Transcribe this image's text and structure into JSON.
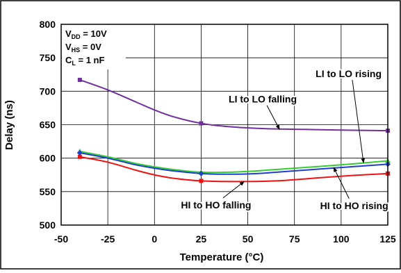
{
  "chart_data": {
    "type": "line",
    "xlabel": "Temperature (°C)",
    "ylabel": "Delay (ns)",
    "xlim": [
      -50,
      125
    ],
    "ylim": [
      500,
      800
    ],
    "xticks": [
      -50,
      -25,
      0,
      25,
      50,
      75,
      100,
      125
    ],
    "yticks": [
      500,
      550,
      600,
      650,
      700,
      750,
      800
    ],
    "grid": true,
    "conditions": {
      "vdd": {
        "main": "V",
        "sub": "DD",
        "rest": " = 10V"
      },
      "vhs": {
        "main": "V",
        "sub": "HS",
        "rest": " = 0V"
      },
      "cl": {
        "main": "C",
        "sub": "L",
        "rest": " = 1 nF"
      }
    },
    "series": [
      {
        "name": "LI to LO falling",
        "color": "#7030A0",
        "marker": "square",
        "points": [
          [
            -40,
            717
          ],
          [
            25,
            652
          ],
          [
            125,
            641
          ]
        ],
        "curve": [
          [
            -40,
            717
          ],
          [
            -25,
            702
          ],
          [
            -10,
            684
          ],
          [
            0,
            672
          ],
          [
            10,
            662
          ],
          [
            25,
            652
          ],
          [
            40,
            647
          ],
          [
            60,
            644
          ],
          [
            80,
            643
          ],
          [
            100,
            642
          ],
          [
            125,
            641
          ]
        ]
      },
      {
        "name": "LI to LO rising",
        "color": "#33CC33",
        "marker": "triangle",
        "points": [
          [
            -40,
            610
          ],
          [
            25,
            579
          ],
          [
            125,
            596
          ]
        ],
        "curve": [
          [
            -40,
            610
          ],
          [
            -25,
            602
          ],
          [
            -10,
            592
          ],
          [
            0,
            587
          ],
          [
            10,
            583
          ],
          [
            25,
            579
          ],
          [
            40,
            579
          ],
          [
            55,
            581
          ],
          [
            75,
            585
          ],
          [
            100,
            590
          ],
          [
            125,
            596
          ]
        ]
      },
      {
        "name": "HI to HO rising",
        "color": "#1F3FD0",
        "marker": "diamond",
        "points": [
          [
            -40,
            608
          ],
          [
            25,
            577
          ],
          [
            125,
            591
          ]
        ],
        "curve": [
          [
            -40,
            608
          ],
          [
            -25,
            600
          ],
          [
            -10,
            590
          ],
          [
            0,
            585
          ],
          [
            10,
            581
          ],
          [
            25,
            577
          ],
          [
            40,
            576
          ],
          [
            55,
            577
          ],
          [
            75,
            581
          ],
          [
            100,
            586
          ],
          [
            125,
            591
          ]
        ]
      },
      {
        "name": "HI to HO falling",
        "color": "#EE1111",
        "marker": "square",
        "points": [
          [
            -40,
            602
          ],
          [
            25,
            566
          ],
          [
            125,
            577
          ]
        ],
        "curve": [
          [
            -40,
            602
          ],
          [
            -25,
            594
          ],
          [
            -10,
            582
          ],
          [
            0,
            575
          ],
          [
            10,
            570
          ],
          [
            25,
            566
          ],
          [
            45,
            565
          ],
          [
            65,
            566
          ],
          [
            85,
            570
          ],
          [
            105,
            574
          ],
          [
            125,
            577
          ]
        ]
      }
    ],
    "annotations": [
      {
        "text": "LI to LO falling",
        "series": 0,
        "label_at": [
          58,
          683
        ],
        "arrow_to": [
          67,
          643
        ]
      },
      {
        "text": "LI to LO rising",
        "series": 1,
        "label_at": [
          104,
          721
        ],
        "arrow_to": [
          112,
          593
        ]
      },
      {
        "text": "HI to HO rising",
        "series": 2,
        "label_at": [
          107,
          524
        ],
        "arrow_to": [
          96,
          586
        ]
      },
      {
        "text": "HI to HO falling",
        "series": 3,
        "label_at": [
          33,
          525
        ],
        "arrow_to": [
          48,
          565
        ]
      }
    ]
  }
}
